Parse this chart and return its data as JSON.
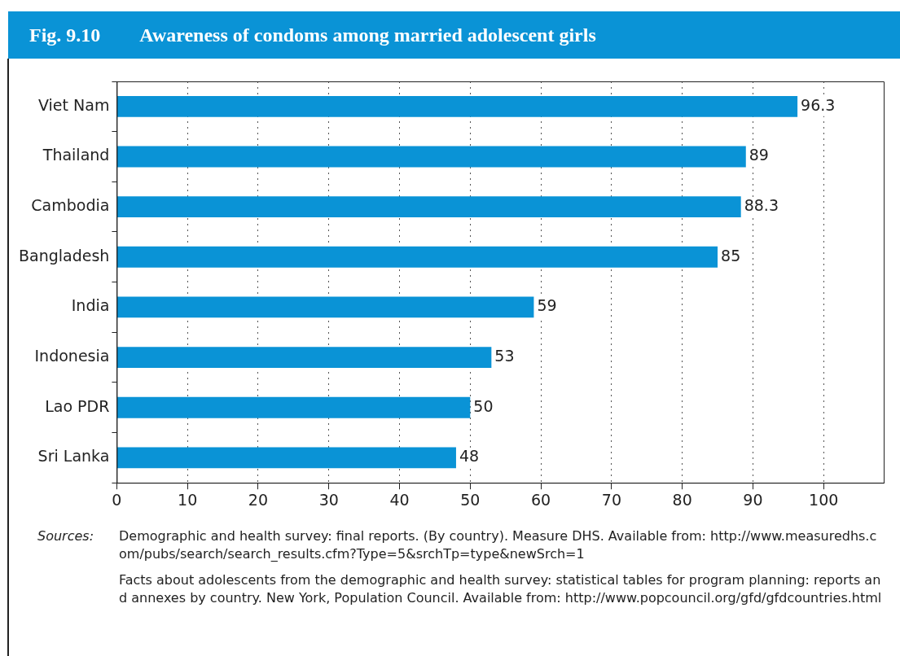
{
  "chart_data": {
    "type": "bar",
    "orientation": "horizontal",
    "title": "Fig. 9.10  Awareness of condoms among married adolescent girls",
    "categories": [
      "Viet Nam",
      "Thailand",
      "Cambodia",
      "Bangladesh",
      "India",
      "Indonesia",
      "Lao PDR",
      "Sri Lanka"
    ],
    "values": [
      96.3,
      89,
      88.3,
      85,
      59,
      53,
      50,
      48
    ],
    "color": "#0a93d6",
    "xlim": [
      0,
      108.5
    ],
    "xticks": [
      0,
      10,
      20,
      30,
      40,
      50,
      60,
      70,
      80,
      90,
      100
    ],
    "grid": "x",
    "data_labels": true,
    "legend": false,
    "annotations": [
      "Sources:",
      "Demographic and health survey: final reports. (By country). Measure DHS. Available from: http://www.measuredhs.com/pubs/search/search_results.cfm?Type=5&srchTp=type&newSrch=1",
      "Facts about adolescents from the demographic and health survey: statistical tables for program planning: reports and annexes by country. New York, Population Council. Available from: http://www.popcouncil.org/gfd/gfdcountries.html"
    ]
  }
}
